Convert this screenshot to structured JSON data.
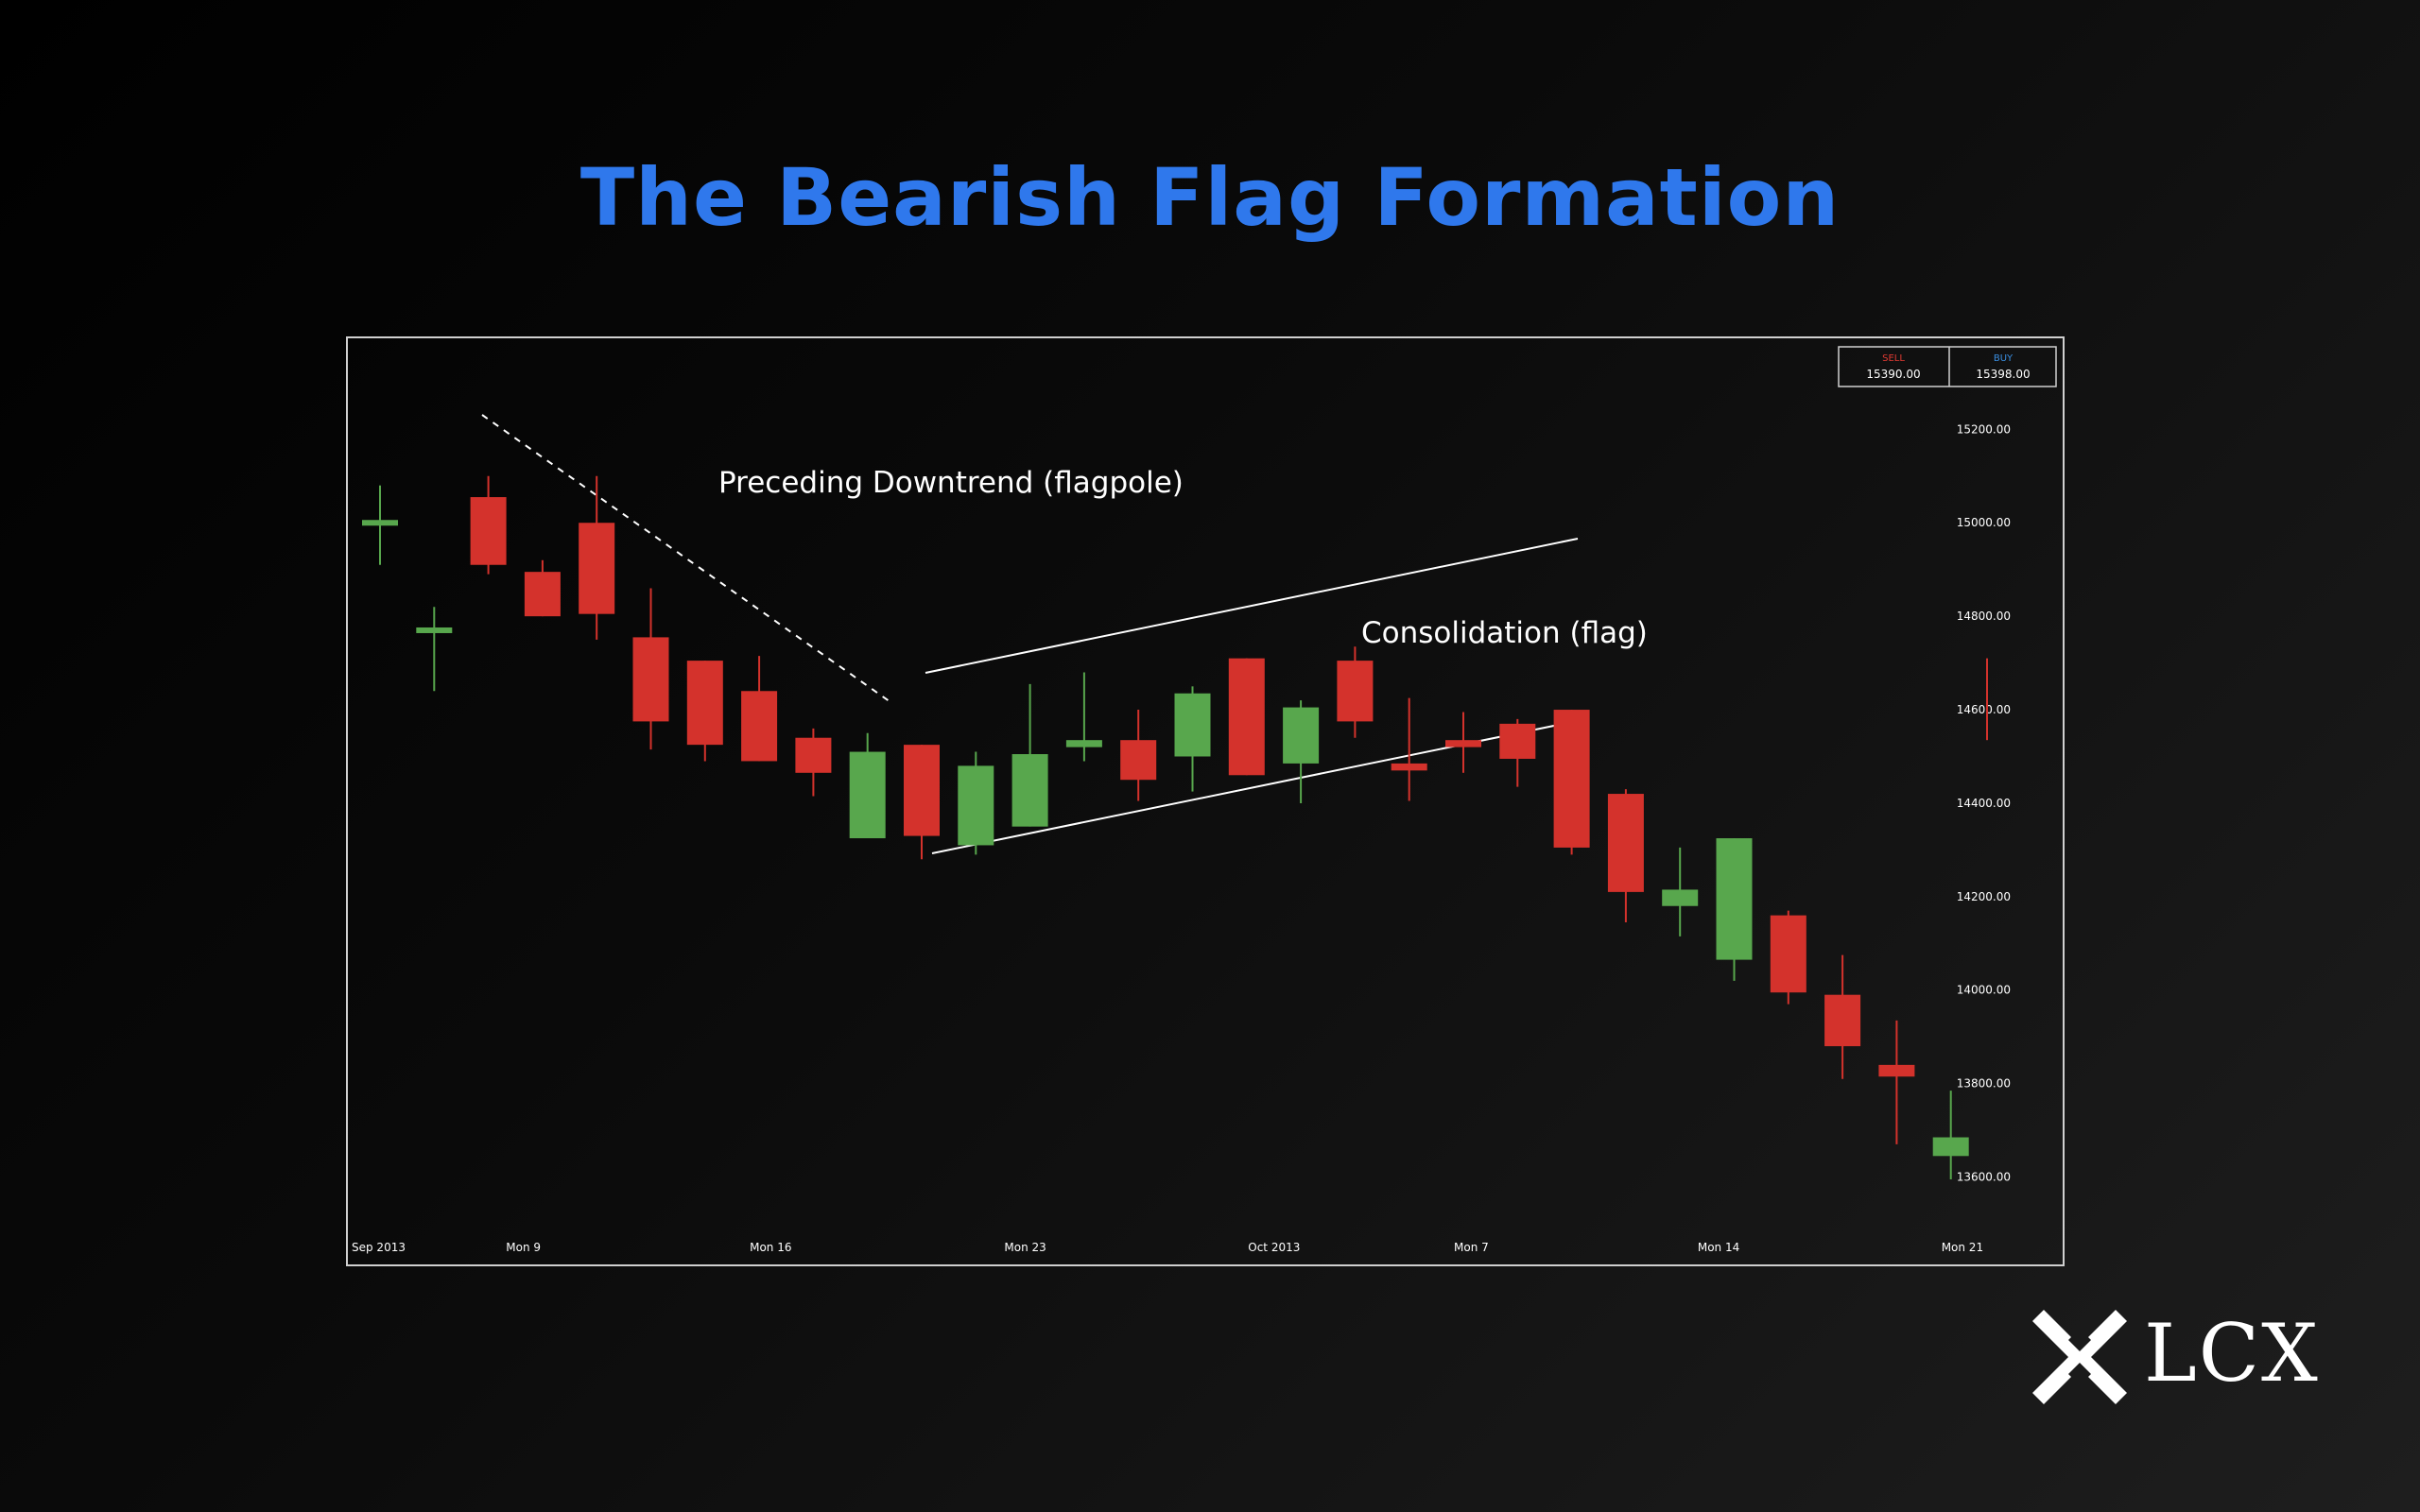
{
  "title": "The Bearish Flag Formation",
  "colors": {
    "title": "#2f78ec",
    "bull": "#58a74d",
    "bear": "#d4322c",
    "frame": "#d0d0d0",
    "sell": "#e03a32",
    "buy": "#3a8ee0"
  },
  "quote_box": {
    "sell_label": "SELL",
    "sell_value": "15390.00",
    "buy_label": "BUY",
    "buy_value": "15398.00"
  },
  "annotations": {
    "flagpole": "Preceding Downtrend (flagpole)",
    "flag": "Consolidation (flag)"
  },
  "logo": {
    "text": "LCX",
    "icon": "lcx-x-mark-icon"
  },
  "chart_data": {
    "type": "candlestick",
    "y_ticks": [
      "15200.00",
      "15000.00",
      "14800.00",
      "14600.00",
      "14400.00",
      "14200.00",
      "14000.00",
      "13800.00",
      "13600.00"
    ],
    "ylim": [
      13500,
      15320
    ],
    "x_ticks": [
      {
        "label": "Sep 2013",
        "index": 0
      },
      {
        "label": "Mon 9",
        "index": 2.5
      },
      {
        "label": "Mon 16",
        "index": 7
      },
      {
        "label": "Mon 23",
        "index": 11.7
      },
      {
        "label": "Oct 2013",
        "index": 16.2
      },
      {
        "label": "Mon 7",
        "index": 20
      },
      {
        "label": "Mon 14",
        "index": 24.5
      },
      {
        "label": "Mon 21",
        "index": 29
      }
    ],
    "candles": [
      {
        "open": 15000,
        "close": 15000,
        "high": 15080,
        "low": 14910,
        "dir": "up"
      },
      {
        "open": 14770,
        "close": 14770,
        "high": 14820,
        "low": 14640,
        "dir": "up"
      },
      {
        "open": 15055,
        "close": 14910,
        "high": 15100,
        "low": 14890,
        "dir": "down"
      },
      {
        "open": 14895,
        "close": 14800,
        "high": 14920,
        "low": 14800,
        "dir": "down"
      },
      {
        "open": 15000,
        "close": 14805,
        "high": 15100,
        "low": 14750,
        "dir": "down"
      },
      {
        "open": 14755,
        "close": 14575,
        "high": 14860,
        "low": 14515,
        "dir": "down"
      },
      {
        "open": 14705,
        "close": 14525,
        "high": 14705,
        "low": 14490,
        "dir": "down"
      },
      {
        "open": 14640,
        "close": 14490,
        "high": 14715,
        "low": 14490,
        "dir": "down"
      },
      {
        "open": 14540,
        "close": 14465,
        "high": 14560,
        "low": 14415,
        "dir": "down"
      },
      {
        "open": 14325,
        "close": 14510,
        "high": 14550,
        "low": 14325,
        "dir": "up"
      },
      {
        "open": 14525,
        "close": 14330,
        "high": 14525,
        "low": 14280,
        "dir": "down"
      },
      {
        "open": 14310,
        "close": 14480,
        "high": 14510,
        "low": 14290,
        "dir": "up"
      },
      {
        "open": 14350,
        "close": 14505,
        "high": 14655,
        "low": 14350,
        "dir": "up"
      },
      {
        "open": 14520,
        "close": 14535,
        "high": 14680,
        "low": 14490,
        "dir": "up"
      },
      {
        "open": 14535,
        "close": 14450,
        "high": 14600,
        "low": 14405,
        "dir": "down"
      },
      {
        "open": 14500,
        "close": 14635,
        "high": 14650,
        "low": 14425,
        "dir": "up"
      },
      {
        "open": 14710,
        "close": 14460,
        "high": 14710,
        "low": 14460,
        "dir": "down"
      },
      {
        "open": 14485,
        "close": 14605,
        "high": 14620,
        "low": 14400,
        "dir": "up"
      },
      {
        "open": 14705,
        "close": 14575,
        "high": 14735,
        "low": 14540,
        "dir": "down"
      },
      {
        "open": 14485,
        "close": 14470,
        "high": 14625,
        "low": 14405,
        "dir": "down"
      },
      {
        "open": 14535,
        "close": 14520,
        "high": 14595,
        "low": 14465,
        "dir": "down"
      },
      {
        "open": 14570,
        "close": 14495,
        "high": 14580,
        "low": 14435,
        "dir": "down"
      },
      {
        "open": 14600,
        "close": 14305,
        "high": 14600,
        "low": 14290,
        "dir": "down"
      },
      {
        "open": 14420,
        "close": 14210,
        "high": 14430,
        "low": 14145,
        "dir": "down"
      },
      {
        "open": 14180,
        "close": 14215,
        "high": 14305,
        "low": 14115,
        "dir": "up"
      },
      {
        "open": 14065,
        "close": 14325,
        "high": 14325,
        "low": 14020,
        "dir": "up"
      },
      {
        "open": 14160,
        "close": 13995,
        "high": 14170,
        "low": 13970,
        "dir": "down"
      },
      {
        "open": 13990,
        "close": 13880,
        "high": 14075,
        "low": 13810,
        "dir": "down"
      },
      {
        "open": 13840,
        "close": 13815,
        "high": 13935,
        "low": 13670,
        "dir": "down"
      },
      {
        "open": 13645,
        "close": 13685,
        "high": 13785,
        "low": 13595,
        "dir": "up"
      }
    ],
    "extra_wick": {
      "x_index": 30.8,
      "high": 14710,
      "low": 14535
    }
  }
}
